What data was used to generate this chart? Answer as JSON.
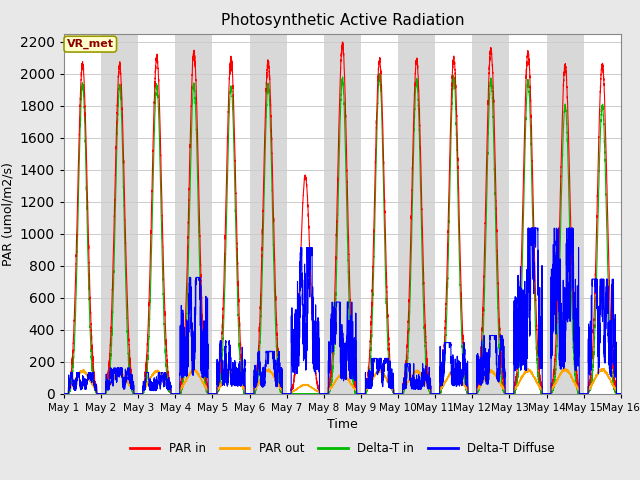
{
  "title": "Photosynthetic Active Radiation",
  "xlabel": "Time",
  "ylabel": "PAR (umol/m2/s)",
  "ylim": [
    0,
    2250
  ],
  "yticks": [
    0,
    200,
    400,
    600,
    800,
    1000,
    1200,
    1400,
    1600,
    1800,
    2000,
    2200
  ],
  "legend_labels": [
    "PAR in",
    "PAR out",
    "Delta-T in",
    "Delta-T Diffuse"
  ],
  "legend_colors": [
    "#ff0000",
    "#ffa500",
    "#00bb00",
    "#0000ff"
  ],
  "watermark_text": "VR_met",
  "plot_bg_color": "#ffffff",
  "fig_bg_color": "#e8e8e8",
  "n_days": 15,
  "day_labels": [
    "May 1",
    "May 2",
    "May 3",
    "May 4",
    "May 5",
    "May 6",
    "May 7",
    "May 8",
    "May 9",
    "May 10",
    "May 11",
    "May 12",
    "May 13",
    "May 14",
    "May 15",
    "May 16"
  ],
  "band_color": "#d8d8d8",
  "par_in_peaks": [
    2060,
    2050,
    2100,
    2130,
    2090,
    2070,
    1360,
    2180,
    2080,
    2080,
    2090,
    2150,
    2130,
    2050,
    2060
  ],
  "par_out_peaks": [
    140,
    130,
    140,
    145,
    140,
    145,
    55,
    120,
    140,
    140,
    140,
    140,
    145,
    150,
    150
  ],
  "dt_in_peaks": [
    1930,
    1920,
    1920,
    1930,
    1920,
    1920,
    0,
    1960,
    1980,
    1960,
    1970,
    1960,
    1950,
    1800,
    1800
  ],
  "diff_peaks": [
    120,
    145,
    120,
    660,
    300,
    240,
    830,
    520,
    200,
    170,
    290,
    330,
    940,
    940,
    650
  ],
  "day7_cloudy": true,
  "seed": 12345
}
